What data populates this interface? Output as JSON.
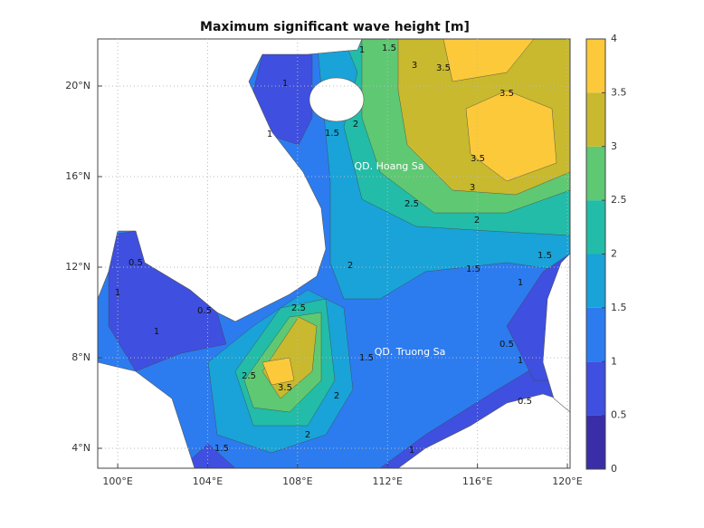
{
  "chart_data": {
    "type": "contour",
    "title": "Maximum significant wave height [m]",
    "xlim": [
      99.11,
      120.12
    ],
    "ylim": [
      3.12,
      22.08
    ],
    "xticks": [
      {
        "value": 100,
        "label": "100°E"
      },
      {
        "value": 104,
        "label": "104°E"
      },
      {
        "value": 108,
        "label": "108°E"
      },
      {
        "value": 112,
        "label": "112°E"
      },
      {
        "value": 116,
        "label": "116°E"
      },
      {
        "value": 120,
        "label": "120°E"
      }
    ],
    "yticks": [
      {
        "value": 4,
        "label": "4°N"
      },
      {
        "value": 8,
        "label": "8°N"
      },
      {
        "value": 12,
        "label": "12°N"
      },
      {
        "value": 16,
        "label": "16°N"
      },
      {
        "value": 20,
        "label": "20°N"
      }
    ],
    "grid": true,
    "colorbar": {
      "lim": [
        0,
        4
      ],
      "ticks": [
        0,
        0.5,
        1,
        1.5,
        2,
        2.5,
        3,
        3.5,
        4
      ],
      "colors": [
        "#3a2ea8",
        "#3f4fdf",
        "#2c7cf0",
        "#19a3d8",
        "#22bca8",
        "#5fc873",
        "#c8b92e",
        "#fbc93a"
      ]
    },
    "annotations": [
      "QD. Hoang Sa",
      "QD. Truong Sa"
    ],
    "contour_labels": [
      1,
      1.5,
      3,
      3.5,
      3.5,
      3.5,
      3,
      2.5,
      2,
      1.5,
      1.5,
      1,
      2,
      1.5,
      1,
      1,
      0.5,
      1,
      0.5,
      1,
      2,
      1.5,
      2.5,
      3.5,
      2.5,
      2,
      2,
      1.5,
      0.5,
      1,
      0.5,
      1
    ]
  }
}
